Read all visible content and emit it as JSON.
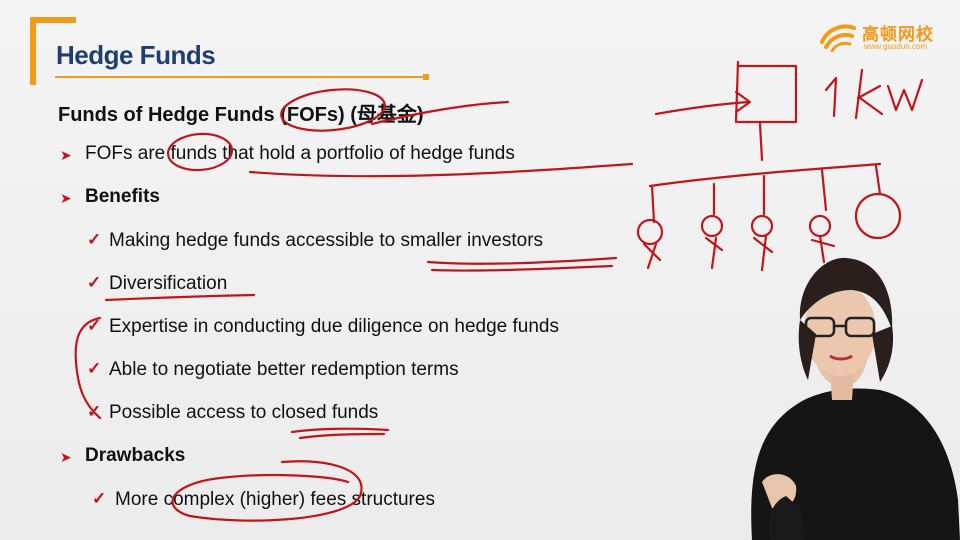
{
  "logo": {
    "brand_cn": "高顿网校",
    "url": "www.gaodun.com"
  },
  "slide": {
    "title": "Hedge Funds",
    "subtitle": "Funds of Hedge Funds (FOFs) (母基金)",
    "items": [
      {
        "kind": "arrow",
        "text": "FOFs are funds that hold a portfolio of hedge funds"
      },
      {
        "kind": "arrow",
        "text": "Benefits",
        "bold": true
      },
      {
        "kind": "check",
        "text": "Making hedge funds accessible to smaller investors"
      },
      {
        "kind": "check",
        "text": "Diversification"
      },
      {
        "kind": "check",
        "text": "Expertise in conducting due diligence on hedge funds"
      },
      {
        "kind": "check",
        "text": "Able to negotiate better redemption terms"
      },
      {
        "kind": "check",
        "text": "Possible access to closed funds"
      },
      {
        "kind": "arrow",
        "text": "Drawbacks",
        "bold": true
      },
      {
        "kind": "check",
        "text": "More complex (higher) fees structures"
      }
    ]
  },
  "annotations": {
    "handwriting": "1kw"
  },
  "colors": {
    "accent": "#f29a1c",
    "title": "#1f3f73",
    "bullet": "#c0161b",
    "ink": "#c0161b"
  }
}
